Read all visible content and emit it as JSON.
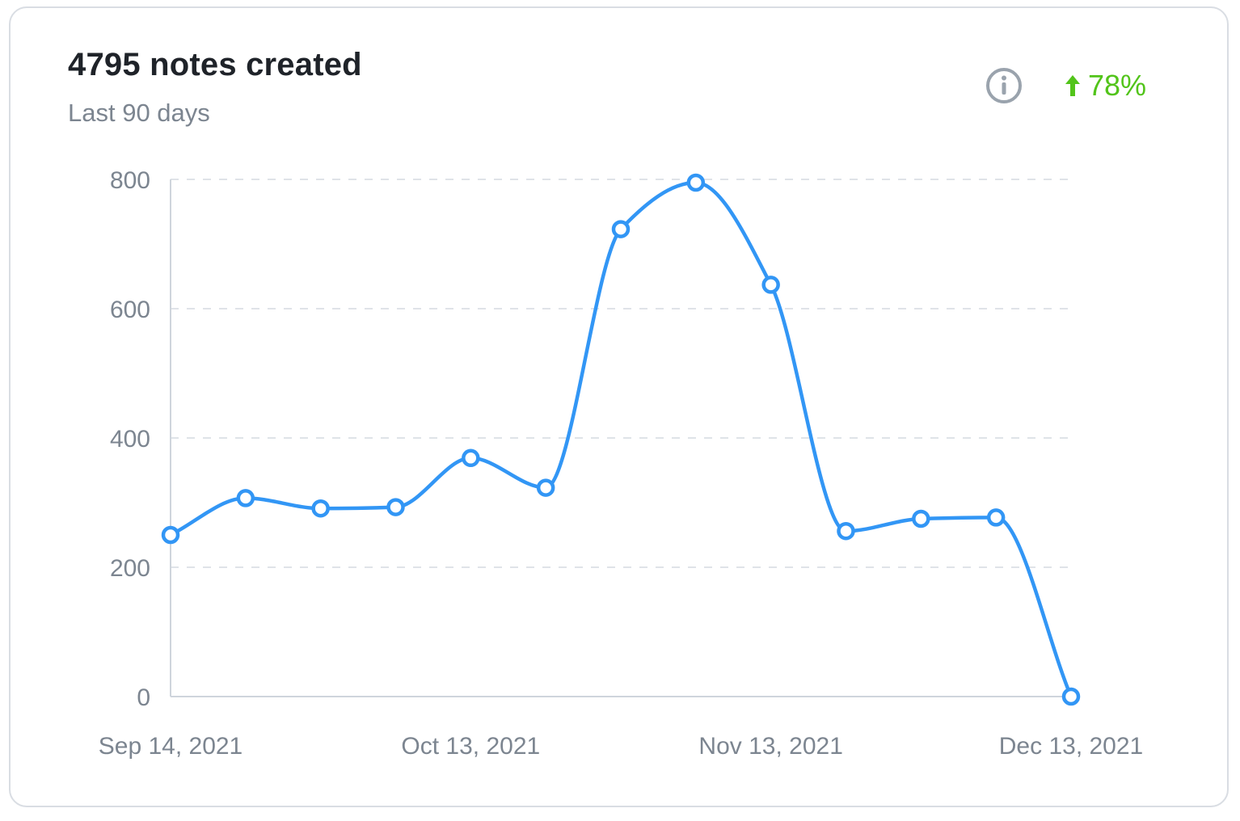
{
  "header": {
    "title": "4795 notes created",
    "subtitle": "Last 90 days",
    "info_icon": "info-circle-icon",
    "change_icon": "arrow-up-icon",
    "change_label": "78%"
  },
  "colors": {
    "line": "#3296f5",
    "positive": "#52c41a",
    "grid": "#dfe3e8",
    "axis": "#cfd5dc",
    "muted": "#7c8590"
  },
  "chart_data": {
    "type": "line",
    "title": "4795 notes created",
    "subtitle": "Last 90 days",
    "xlabel": "",
    "ylabel": "",
    "ylim": [
      0,
      800
    ],
    "yticks": [
      0,
      200,
      400,
      600,
      800
    ],
    "xticks": [
      "Sep 14, 2021",
      "Oct 13, 2021",
      "Nov 13, 2021",
      "Dec 13, 2021"
    ],
    "xtick_indices": [
      0,
      4,
      8,
      12
    ],
    "grid": true,
    "smooth": true,
    "series": [
      {
        "values": [
          250,
          307,
          291,
          293,
          369,
          323,
          723,
          795,
          637,
          256,
          275,
          277,
          0
        ]
      }
    ]
  }
}
